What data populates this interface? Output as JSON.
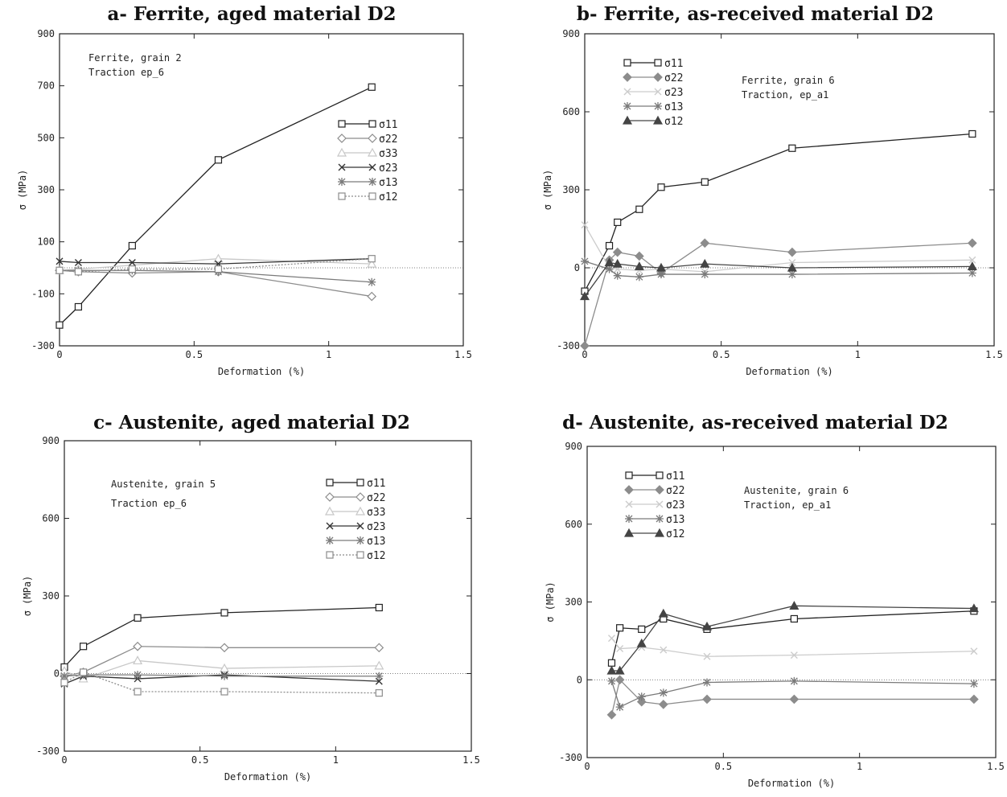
{
  "chart_data": [
    {
      "type": "line",
      "title": "a- Ferrite, aged material D2",
      "xlabel": "Deformation (%)",
      "ylabel": "σ (MPa)",
      "xlim": [
        0,
        1.5
      ],
      "ylim": [
        -300,
        900
      ],
      "xticks": [
        "0",
        "0.5",
        "1",
        "1.5"
      ],
      "yticks": [
        "-300",
        "-100",
        "100",
        "300",
        "500",
        "700",
        "900"
      ],
      "annotations": [
        "Ferrite, grain 2",
        "Traction ep_6"
      ],
      "legend_position": "right",
      "series": [
        {
          "name": "σ11",
          "color": "#222222",
          "marker": "square-open",
          "dash": "none",
          "x": [
            0,
            0.07,
            0.27,
            0.59,
            1.16
          ],
          "y": [
            -220,
            -150,
            85,
            415,
            695
          ]
        },
        {
          "name": "σ22",
          "color": "#8c8c8c",
          "marker": "diamond-open",
          "dash": "none",
          "x": [
            0,
            0.07,
            0.27,
            0.59,
            1.16
          ],
          "y": [
            -10,
            -15,
            -20,
            -15,
            -110
          ]
        },
        {
          "name": "σ33",
          "color": "#c8c8c8",
          "marker": "triangle-open",
          "dash": "none",
          "x": [
            0,
            0.07,
            0.27,
            0.59,
            1.16
          ],
          "y": [
            -10,
            -5,
            10,
            35,
            15
          ]
        },
        {
          "name": "σ23",
          "color": "#333333",
          "marker": "x",
          "dash": "none",
          "x": [
            0,
            0.07,
            0.27,
            0.59,
            1.16
          ],
          "y": [
            25,
            20,
            20,
            15,
            35
          ]
        },
        {
          "name": "σ13",
          "color": "#7a7a7a",
          "marker": "star",
          "dash": "none",
          "x": [
            0,
            0.07,
            0.27,
            0.59,
            1.16
          ],
          "y": [
            -10,
            -10,
            -10,
            -15,
            -55
          ]
        },
        {
          "name": "σ12",
          "color": "#8c8c8c",
          "marker": "square-open",
          "dash": "2,2",
          "x": [
            0,
            0.07,
            0.27,
            0.59,
            1.16
          ],
          "y": [
            -10,
            -15,
            -5,
            -5,
            35
          ]
        }
      ]
    },
    {
      "type": "line",
      "title": "b- Ferrite, as-received material D2",
      "xlabel": "Deformation (%)",
      "ylabel": "σ (MPa)",
      "xlim": [
        0,
        1.5
      ],
      "ylim": [
        -300,
        900
      ],
      "xticks": [
        "0",
        "0.5",
        "1",
        "1.5"
      ],
      "yticks": [
        "-300",
        "0",
        "300",
        "600",
        "900"
      ],
      "annotations": [
        "Ferrite, grain 6",
        "Traction, ep_a1"
      ],
      "legend_position": "top-left",
      "series": [
        {
          "name": "σ11",
          "color": "#222222",
          "marker": "square-open",
          "dash": "none",
          "x": [
            0,
            0.09,
            0.12,
            0.2,
            0.28,
            0.44,
            0.76,
            1.42
          ],
          "y": [
            -90,
            85,
            175,
            225,
            310,
            330,
            460,
            515
          ]
        },
        {
          "name": "σ22",
          "color": "#8c8c8c",
          "marker": "diamond",
          "dash": "none",
          "x": [
            0,
            0.09,
            0.12,
            0.2,
            0.28,
            0.44,
            0.76,
            1.42
          ],
          "y": [
            -300,
            30,
            60,
            45,
            -20,
            95,
            60,
            95
          ]
        },
        {
          "name": "σ23",
          "color": "#cccccc",
          "marker": "x",
          "dash": "none",
          "x": [
            0,
            0.09,
            0.12,
            0.2,
            0.28,
            0.44,
            0.76,
            1.42
          ],
          "y": [
            165,
            0,
            -5,
            -10,
            -5,
            -15,
            20,
            30
          ]
        },
        {
          "name": "σ13",
          "color": "#7a7a7a",
          "marker": "star",
          "dash": "none",
          "x": [
            0,
            0.09,
            0.12,
            0.2,
            0.28,
            0.44,
            0.76,
            1.42
          ],
          "y": [
            25,
            -5,
            -30,
            -35,
            -25,
            -25,
            -25,
            -20
          ]
        },
        {
          "name": "σ12",
          "color": "#444444",
          "marker": "triangle",
          "dash": "none",
          "x": [
            0,
            0.09,
            0.12,
            0.2,
            0.28,
            0.44,
            0.76,
            1.42
          ],
          "y": [
            -110,
            20,
            15,
            5,
            0,
            15,
            0,
            5
          ]
        }
      ]
    },
    {
      "type": "line",
      "title": "c- Austenite, aged material D2",
      "xlabel": "Deformation (%)",
      "ylabel": "σ (MPa)",
      "xlim": [
        0,
        1.5
      ],
      "ylim": [
        -300,
        900
      ],
      "xticks": [
        "0",
        "0.5",
        "1",
        "1.5"
      ],
      "yticks": [
        "-300",
        "0",
        "300",
        "600",
        "900"
      ],
      "annotations": [
        "Austenite, grain 5",
        "Traction ep_6"
      ],
      "legend_position": "top-right",
      "series": [
        {
          "name": "σ11",
          "color": "#222222",
          "marker": "square-open",
          "dash": "none",
          "x": [
            0,
            0.07,
            0.27,
            0.59,
            1.16
          ],
          "y": [
            25,
            105,
            215,
            235,
            255
          ]
        },
        {
          "name": "σ22",
          "color": "#8c8c8c",
          "marker": "diamond-open",
          "dash": "none",
          "x": [
            0,
            0.07,
            0.27,
            0.59,
            1.16
          ],
          "y": [
            -10,
            5,
            105,
            100,
            100
          ]
        },
        {
          "name": "σ33",
          "color": "#c8c8c8",
          "marker": "triangle-open",
          "dash": "none",
          "x": [
            0,
            0.07,
            0.27,
            0.59,
            1.16
          ],
          "y": [
            10,
            -20,
            50,
            20,
            30
          ]
        },
        {
          "name": "σ23",
          "color": "#333333",
          "marker": "x",
          "dash": "none",
          "x": [
            0,
            0.07,
            0.27,
            0.59,
            1.16
          ],
          "y": [
            -40,
            -10,
            -20,
            -5,
            -30
          ]
        },
        {
          "name": "σ13",
          "color": "#7a7a7a",
          "marker": "star",
          "dash": "none",
          "x": [
            0,
            0.07,
            0.27,
            0.59,
            1.16
          ],
          "y": [
            -10,
            -5,
            -5,
            -10,
            -10
          ]
        },
        {
          "name": "σ12",
          "color": "#8c8c8c",
          "marker": "square-open",
          "dash": "2,2",
          "x": [
            0,
            0.07,
            0.27,
            0.59,
            1.16
          ],
          "y": [
            -35,
            5,
            -70,
            -70,
            -75
          ]
        }
      ]
    },
    {
      "type": "line",
      "title": "d- Austenite, as-received material D2",
      "xlabel": "Deformation (%)",
      "ylabel": "σ (MPa)",
      "xlim": [
        0,
        1.5
      ],
      "ylim": [
        -300,
        900
      ],
      "xticks": [
        "0",
        "0.5",
        "1",
        "1.5"
      ],
      "yticks": [
        "-300",
        "0",
        "300",
        "600",
        "900"
      ],
      "annotations": [
        "Austenite, grain 6",
        "Traction, ep_a1"
      ],
      "legend_position": "top-left",
      "series": [
        {
          "name": "σ11",
          "color": "#222222",
          "marker": "square-open",
          "dash": "none",
          "x": [
            0.09,
            0.12,
            0.2,
            0.28,
            0.44,
            0.76,
            1.42
          ],
          "y": [
            65,
            200,
            195,
            235,
            195,
            235,
            265
          ]
        },
        {
          "name": "σ22",
          "color": "#8c8c8c",
          "marker": "diamond",
          "dash": "none",
          "x": [
            0.09,
            0.12,
            0.2,
            0.28,
            0.44,
            0.76,
            1.42
          ],
          "y": [
            -135,
            0,
            -85,
            -95,
            -75,
            -75,
            -75
          ]
        },
        {
          "name": "σ23",
          "color": "#cccccc",
          "marker": "x",
          "dash": "none",
          "x": [
            0.09,
            0.12,
            0.2,
            0.28,
            0.44,
            0.76,
            1.42
          ],
          "y": [
            160,
            120,
            125,
            115,
            90,
            95,
            110
          ]
        },
        {
          "name": "σ13",
          "color": "#7a7a7a",
          "marker": "star",
          "dash": "none",
          "x": [
            0.09,
            0.12,
            0.2,
            0.28,
            0.44,
            0.76,
            1.42
          ],
          "y": [
            -5,
            -105,
            -65,
            -50,
            -10,
            -5,
            -15
          ]
        },
        {
          "name": "σ12",
          "color": "#444444",
          "marker": "triangle",
          "dash": "none",
          "x": [
            0.09,
            0.12,
            0.2,
            0.28,
            0.44,
            0.76,
            1.42
          ],
          "y": [
            35,
            35,
            140,
            255,
            205,
            285,
            275
          ]
        }
      ]
    }
  ]
}
